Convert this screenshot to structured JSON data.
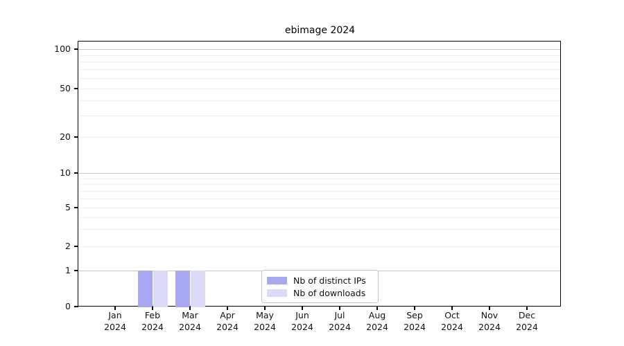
{
  "chart_data": {
    "type": "bar",
    "title": "ebimage 2024",
    "categories": [
      "Jan",
      "Feb",
      "Mar",
      "Apr",
      "May",
      "Jun",
      "Jul",
      "Aug",
      "Sep",
      "Oct",
      "Nov",
      "Dec"
    ],
    "category_year": "2024",
    "series": [
      {
        "name": "Nb of distinct IPs",
        "color": "#a7a7f3",
        "values": [
          0,
          1,
          1,
          0,
          0,
          0,
          0,
          0,
          0,
          0,
          0,
          0
        ]
      },
      {
        "name": "Nb of downloads",
        "color": "#dbdbf9",
        "values": [
          0,
          1,
          1,
          0,
          0,
          0,
          0,
          0,
          0,
          0,
          0,
          0
        ]
      }
    ],
    "yticks": [
      0,
      1,
      2,
      5,
      10,
      20,
      50,
      100
    ],
    "ytick_labels": [
      "0",
      "1",
      "2",
      "5",
      "10",
      "20",
      "50",
      "100"
    ],
    "ylim": [
      0,
      100
    ],
    "yscale": "log-like",
    "grid": true,
    "major_grid_values": [
      1,
      10,
      100
    ],
    "minor_grid_values": [
      2,
      3,
      4,
      5,
      6,
      7,
      8,
      9,
      20,
      30,
      40,
      50,
      60,
      70,
      80,
      90
    ],
    "legend": {
      "position": "inside-bottom-center",
      "entries": [
        "Nb of distinct IPs",
        "Nb of downloads"
      ]
    },
    "colors": {
      "axis": "#000000",
      "major_grid": "#c8c8c8",
      "minor_grid": "#ededed",
      "background": "#ffffff",
      "legend_border": "#c4c4c4"
    }
  }
}
